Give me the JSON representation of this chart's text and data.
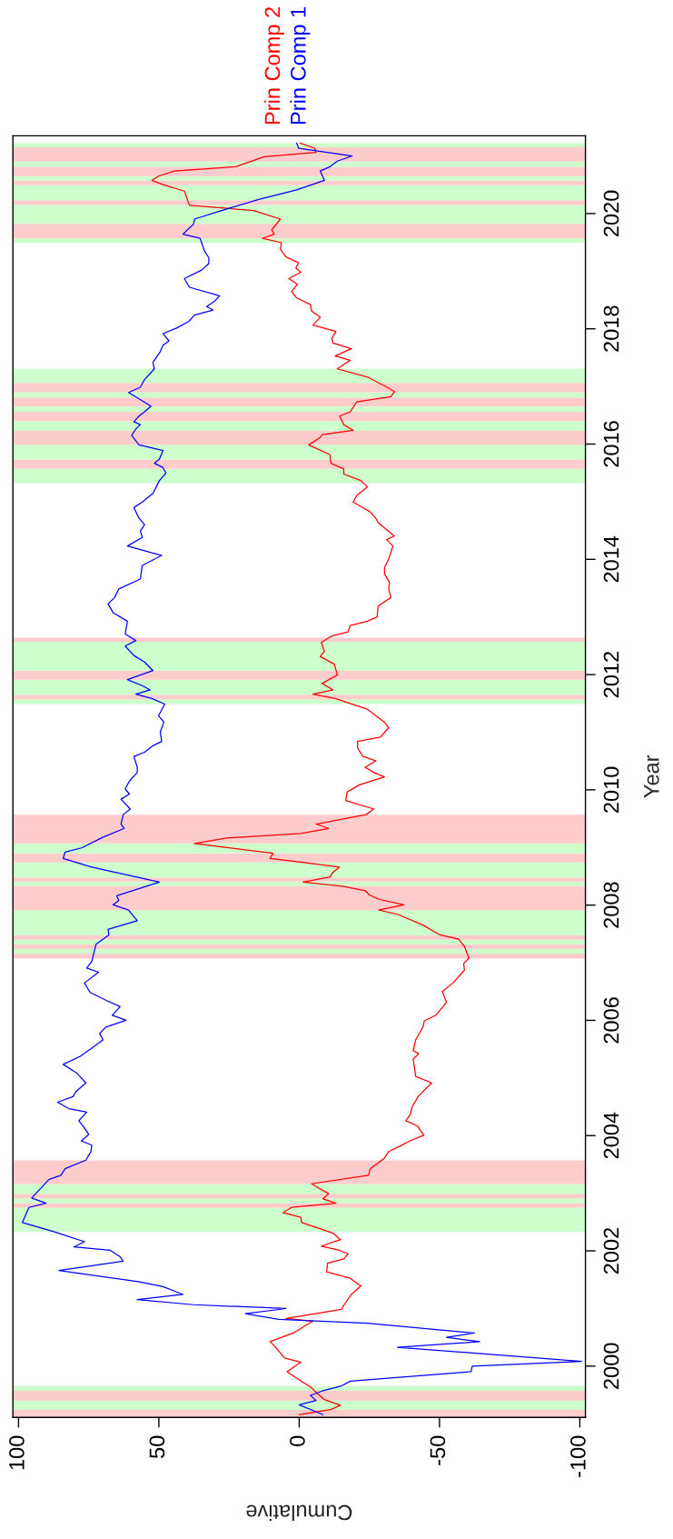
{
  "chart_data": {
    "type": "line",
    "xlabel": "Cumulative",
    "ylabel": "Year",
    "xlim": [
      102,
      -102
    ],
    "ylim": [
      1999.11,
      2021.35
    ],
    "xticks": [
      100,
      50,
      0,
      -50,
      -100
    ],
    "yticks": [
      2000,
      2002,
      2004,
      2006,
      2008,
      2010,
      2012,
      2014,
      2016,
      2018,
      2020
    ],
    "legend": "top",
    "line_style": "solid",
    "series": [
      {
        "name": "Prin Comp 2",
        "color": "#ff0000",
        "values": [
          1999.158,
          1999.247,
          1999.322,
          1999.419,
          1999.515,
          1999.642,
          1999.717,
          1999.903,
          2000.067,
          2000.141,
          2000.335,
          2000.425,
          2000.574,
          2000.782,
          2000.827,
          2000.984,
          2001.058,
          2001.244,
          2001.393,
          2001.468,
          2001.524,
          2001.636,
          2001.785,
          2001.86,
          2001.949,
          2002.009,
          2002.083,
          2002.195,
          2002.307,
          2002.493,
          2002.582,
          2002.664,
          2002.754,
          2002.828,
          2002.903,
          2002.992,
          2003.164,
          2003.313,
          2003.425,
          2003.611,
          2003.723,
          2003.812,
          2003.909,
          2004.006,
          2004.17,
          2004.259,
          2004.356,
          2004.505,
          2004.692,
          2004.915,
          2005.027,
          2005.176,
          2005.325,
          2005.422,
          2005.474,
          2005.66,
          2005.884,
          2005.992,
          2006.089,
          2006.313,
          2006.499,
          2006.648,
          2006.872,
          2006.983,
          2007.08,
          2007.282,
          2007.408,
          2007.483,
          2007.654,
          2007.841,
          2007.915,
          2008.005,
          2008.101,
          2008.176,
          2008.25,
          2008.325,
          2008.4,
          2008.489,
          2008.571,
          2008.66,
          2008.735,
          2008.809,
          2008.899,
          2009.07,
          2009.167,
          2009.242,
          2009.331,
          2009.406,
          2009.57,
          2009.667,
          2009.816,
          2009.965,
          2010.091,
          2010.225,
          2010.3,
          2010.393,
          2010.504,
          2010.579,
          2010.728,
          2010.84,
          2010.914,
          2011.078,
          2011.175,
          2011.399,
          2011.585,
          2011.659,
          2011.734,
          2011.846,
          2011.995,
          2012.181,
          2012.315,
          2012.405,
          2012.554,
          2012.665,
          2012.74,
          2012.852,
          2012.926,
          2013.001,
          2013.187,
          2013.336,
          2013.485,
          2013.597,
          2013.746,
          2013.858,
          2014.007,
          2014.231,
          2014.342,
          2014.402,
          2014.529,
          2014.64,
          2014.715,
          2014.823,
          2014.883,
          2014.995,
          2015.107,
          2015.256,
          2015.367,
          2015.479,
          2015.569,
          2015.666,
          2015.815,
          2015.986,
          2016.113,
          2016.165,
          2016.239,
          2016.337,
          2016.485,
          2016.56,
          2016.731,
          2016.821,
          2016.91,
          2016.97,
          2017.156,
          2017.305,
          2017.454,
          2017.529,
          2017.655,
          2017.752,
          2017.827,
          2017.954,
          2018.065,
          2018.199,
          2018.311,
          2018.423,
          2018.535,
          2018.647,
          2018.773,
          2018.87,
          2018.982,
          2019.056,
          2019.144,
          2019.248,
          2019.383,
          2019.494,
          2019.569,
          2019.643,
          2019.718,
          2019.904,
          2020.053,
          2020.143,
          2020.389,
          2020.501,
          2020.575,
          2020.649,
          2020.739,
          2020.813,
          2020.985,
          2021.06,
          2021.134,
          2021.223
        ],
        "x": [
          0,
          -11.3,
          -14.7,
          -9.0,
          -6.7,
          -4.0,
          -1.4,
          4.3,
          -0.6,
          5.2,
          8.5,
          10.4,
          2.1,
          -4.9,
          4.7,
          -15.1,
          -15.9,
          -18.6,
          -22.0,
          -19.7,
          -18.2,
          -9.8,
          -10.1,
          -15.9,
          -17.4,
          -14.4,
          -7.9,
          -14.7,
          -12.1,
          -0.9,
          -0.6,
          5.8,
          2.7,
          -13.1,
          -8.5,
          -10.5,
          -4.4,
          -24.7,
          -25.3,
          -30.4,
          -31.9,
          -35.7,
          -39.5,
          -44.4,
          -42.1,
          -38.0,
          -39.5,
          -40.3,
          -42.6,
          -47.2,
          -41.5,
          -41.1,
          -40.6,
          -42.6,
          -40.6,
          -41.5,
          -44.1,
          -44.6,
          -48.7,
          -52.5,
          -51.0,
          -54.8,
          -58.9,
          -58.6,
          -60.5,
          -58.9,
          -56.8,
          -50.2,
          -44.1,
          -35.0,
          -28.4,
          -37.3,
          -28.4,
          -25.0,
          -23.5,
          -15.9,
          -1.4,
          -11.0,
          -12.1,
          -14.4,
          -2.4,
          10.4,
          9.3,
          37.3,
          25.3,
          -0.6,
          -10.5,
          -6.0,
          -23.8,
          -26.6,
          -16.6,
          -17.1,
          -21.7,
          -30.4,
          -26.6,
          -23.5,
          -27.3,
          -22.7,
          -20.8,
          -20.8,
          -28.9,
          -31.9,
          -30.4,
          -24.3,
          -12.8,
          -4.9,
          -12.1,
          -8.2,
          -13.6,
          -12.5,
          -7.5,
          -9.0,
          -7.9,
          -11.3,
          -17.4,
          -18.2,
          -24.3,
          -27.8,
          -28.1,
          -32.7,
          -31.9,
          -32.2,
          -30.4,
          -30.4,
          -31.9,
          -33.4,
          -31.1,
          -33.9,
          -30.8,
          -28.1,
          -27.3,
          -25.3,
          -23.2,
          -19.2,
          -20.5,
          -24.3,
          -22.0,
          -15.9,
          -15.9,
          -11.3,
          -11.0,
          -3.4,
          -7.5,
          -8.2,
          -19.2,
          -15.9,
          -14.4,
          -18.2,
          -20.5,
          -32.7,
          -33.9,
          -31.9,
          -24.7,
          -13.6,
          -18.2,
          -12.8,
          -18.6,
          -12.1,
          -11.6,
          -13.1,
          -4.9,
          -7.5,
          -4.4,
          -4.0,
          0.9,
          2.7,
          0.6,
          3.7,
          -0.6,
          1.2,
          0.2,
          4.7,
          6.7,
          6.3,
          13.1,
          8.9,
          9.8,
          6.7,
          16.2,
          39.1,
          40.9,
          48.5,
          52.5,
          50.1,
          44.4,
          22.6,
          12.4,
          -6.0,
          -5.5,
          -0.3
        ]
      },
      {
        "name": "Prin Comp 1",
        "color": "#0000ff",
        "values": [
          1999.158,
          1999.329,
          1999.404,
          1999.493,
          1999.568,
          1999.657,
          1999.739,
          1999.903,
          2000.0,
          2000.082,
          2000.328,
          2000.425,
          2000.499,
          2000.574,
          2000.745,
          2000.812,
          2000.909,
          2000.999,
          2001.066,
          2001.155,
          2001.244,
          2001.379,
          2001.468,
          2001.658,
          2001.822,
          2001.897,
          2002.009,
          2002.068,
          2002.158,
          2002.329,
          2002.493,
          2002.754,
          2002.828,
          2002.918,
          2003.238,
          2003.313,
          2003.425,
          2003.574,
          2003.723,
          2003.834,
          2003.909,
          2004.021,
          2004.133,
          2004.259,
          2004.408,
          2004.468,
          2004.58,
          2004.677,
          2004.766,
          2004.915,
          2005.079,
          2005.236,
          2005.377,
          2005.549,
          2005.66,
          2005.772,
          2005.884,
          2006.0,
          2006.089,
          2006.238,
          2006.35,
          2006.484,
          2006.648,
          2006.835,
          2006.909,
          2007.021,
          2007.319,
          2007.483,
          2007.58,
          2007.729,
          2007.915,
          2008.005,
          2008.079,
          2008.161,
          2008.4,
          2008.489,
          2008.66,
          2008.809,
          2008.921,
          2008.996,
          2009.167,
          2009.331,
          2009.406,
          2009.57,
          2009.667,
          2009.838,
          2009.927,
          2010.017,
          2010.151,
          2010.3,
          2010.393,
          2010.579,
          2010.653,
          2010.765,
          2010.84,
          2011.004,
          2011.175,
          2011.287,
          2011.488,
          2011.585,
          2011.659,
          2011.734,
          2011.808,
          2011.913,
          2012.069,
          2012.218,
          2012.33,
          2012.494,
          2012.591,
          2012.703,
          2012.926,
          2013.075,
          2013.225,
          2013.336,
          2013.485,
          2013.657,
          2013.895,
          2014.067,
          2014.231,
          2014.38,
          2014.491,
          2014.603,
          2014.715,
          2014.898,
          2014.995,
          2015.144,
          2015.367,
          2015.494,
          2015.591,
          2015.666,
          2015.74,
          2015.889,
          2015.986,
          2016.15,
          2016.262,
          2016.337,
          2016.388,
          2016.485,
          2016.56,
          2016.657,
          2016.895,
          2016.985,
          2017.119,
          2017.305,
          2017.417,
          2017.603,
          2017.715,
          2017.79,
          2017.916,
          2018.013,
          2018.125,
          2018.237,
          2018.326,
          2018.386,
          2018.475,
          2018.572,
          2018.721,
          2018.87,
          2019.019,
          2019.131,
          2019.233,
          2019.345,
          2019.569,
          2019.643,
          2019.718,
          2019.815,
          2019.904,
          2020.068,
          2020.24,
          2020.411,
          2020.575,
          2020.739,
          2020.813,
          2020.91,
          2021.0,
          2021.134,
          2021.223
        ],
        "x": [
          -8.5,
          0,
          -6.0,
          -4.0,
          -8.2,
          -15.1,
          -18.2,
          -61.2,
          -61.7,
          -100.6,
          -35.0,
          -64.3,
          -52.5,
          -62.4,
          -24.3,
          7.3,
          19.2,
          4.7,
          37.6,
          57.7,
          41.4,
          48.5,
          57.4,
          85.6,
          62.7,
          63.8,
          67.3,
          80.3,
          76.5,
          87.2,
          98.6,
          96.3,
          90.2,
          95.3,
          89.2,
          84.9,
          83.4,
          76.0,
          74.2,
          73.9,
          77.6,
          75.0,
          76.5,
          78.5,
          75.7,
          82.1,
          86.1,
          80.6,
          79.5,
          76.0,
          79.1,
          84.1,
          78.0,
          73.0,
          69.9,
          71.1,
          68.9,
          61.7,
          66.6,
          63.8,
          68.9,
          74.5,
          76.5,
          71.5,
          75.7,
          73.9,
          72.4,
          67.8,
          68.1,
          57.7,
          60.8,
          66.3,
          64.3,
          65.0,
          49.8,
          58.2,
          73.9,
          84.1,
          83.4,
          77.3,
          70.4,
          62.3,
          63.5,
          62.7,
          60.2,
          63.5,
          60.5,
          62.0,
          60.5,
          57.7,
          57.7,
          58.9,
          55.1,
          52.1,
          49.0,
          49.5,
          48.2,
          50.1,
          47.9,
          52.5,
          58.2,
          53.1,
          55.9,
          61.2,
          52.1,
          55.1,
          58.9,
          62.0,
          58.2,
          62.0,
          61.2,
          66.3,
          68.1,
          65.8,
          64.3,
          56.6,
          55.9,
          49.0,
          61.2,
          55.9,
          56.6,
          55.1,
          57.1,
          58.9,
          55.9,
          52.1,
          49.8,
          47.5,
          48.5,
          51.6,
          49.8,
          48.5,
          57.1,
          59.7,
          58.2,
          56.6,
          58.9,
          57.1,
          55.1,
          52.8,
          60.8,
          56.6,
          55.1,
          51.6,
          52.1,
          49.5,
          48.5,
          46.4,
          48.5,
          43.7,
          39.4,
          37.3,
          30.7,
          33.0,
          30.2,
          28.4,
          39.1,
          40.9,
          34.8,
          32.2,
          32.2,
          33.7,
          35.3,
          41.4,
          39.8,
          37.6,
          37.3,
          26.6,
          14.7,
          0.9,
          -9.0,
          -7.5,
          -11.0,
          -13.6,
          -18.9,
          0.2,
          0.9
        ]
      }
    ],
    "bands": [
      {
        "axis": "y",
        "from": 1999.11,
        "to": 1999.24,
        "color": "#ffcccc"
      },
      {
        "axis": "y",
        "from": 1999.24,
        "to": 1999.4,
        "color": "#ccffcc"
      },
      {
        "axis": "y",
        "from": 1999.4,
        "to": 1999.57,
        "color": "#ffcccc"
      },
      {
        "axis": "y",
        "from": 1999.57,
        "to": 1999.66,
        "color": "#ccffcc"
      },
      {
        "axis": "y",
        "from": 2002.33,
        "to": 2002.75,
        "color": "#ccffcc"
      },
      {
        "axis": "y",
        "from": 2002.75,
        "to": 2002.83,
        "color": "#ffcccc"
      },
      {
        "axis": "y",
        "from": 2002.83,
        "to": 2002.91,
        "color": "#ccffcc"
      },
      {
        "axis": "y",
        "from": 2002.91,
        "to": 2002.99,
        "color": "#ffcccc"
      },
      {
        "axis": "y",
        "from": 2002.99,
        "to": 2003.16,
        "color": "#ccffcc"
      },
      {
        "axis": "y",
        "from": 2003.16,
        "to": 2003.57,
        "color": "#ffcccc"
      },
      {
        "axis": "y",
        "from": 2007.07,
        "to": 2007.16,
        "color": "#ffcccc"
      },
      {
        "axis": "y",
        "from": 2007.16,
        "to": 2007.24,
        "color": "#ccffcc"
      },
      {
        "axis": "y",
        "from": 2007.24,
        "to": 2007.32,
        "color": "#ffcccc"
      },
      {
        "axis": "y",
        "from": 2007.32,
        "to": 2007.4,
        "color": "#ccffcc"
      },
      {
        "axis": "y",
        "from": 2007.4,
        "to": 2007.48,
        "color": "#ffcccc"
      },
      {
        "axis": "y",
        "from": 2007.48,
        "to": 2007.91,
        "color": "#ccffcc"
      },
      {
        "axis": "y",
        "from": 2007.91,
        "to": 2008.33,
        "color": "#ffcccc"
      },
      {
        "axis": "y",
        "from": 2008.33,
        "to": 2008.41,
        "color": "#ccffcc"
      },
      {
        "axis": "y",
        "from": 2008.41,
        "to": 2008.48,
        "color": "#ffcccc"
      },
      {
        "axis": "y",
        "from": 2008.48,
        "to": 2008.74,
        "color": "#ccffcc"
      },
      {
        "axis": "y",
        "from": 2008.74,
        "to": 2008.9,
        "color": "#ffcccc"
      },
      {
        "axis": "y",
        "from": 2008.9,
        "to": 2009.07,
        "color": "#ccffcc"
      },
      {
        "axis": "y",
        "from": 2009.07,
        "to": 2009.57,
        "color": "#ffcccc"
      },
      {
        "axis": "y",
        "from": 2011.49,
        "to": 2011.57,
        "color": "#ccffcc"
      },
      {
        "axis": "y",
        "from": 2011.57,
        "to": 2011.65,
        "color": "#ffcccc"
      },
      {
        "axis": "y",
        "from": 2011.65,
        "to": 2011.91,
        "color": "#ccffcc"
      },
      {
        "axis": "y",
        "from": 2011.91,
        "to": 2012.07,
        "color": "#ffcccc"
      },
      {
        "axis": "y",
        "from": 2012.07,
        "to": 2012.57,
        "color": "#ccffcc"
      },
      {
        "axis": "y",
        "from": 2012.57,
        "to": 2012.64,
        "color": "#ffcccc"
      },
      {
        "axis": "y",
        "from": 2015.32,
        "to": 2015.57,
        "color": "#ccffcc"
      },
      {
        "axis": "y",
        "from": 2015.57,
        "to": 2015.73,
        "color": "#ffcccc"
      },
      {
        "axis": "y",
        "from": 2015.73,
        "to": 2015.99,
        "color": "#ccffcc"
      },
      {
        "axis": "y",
        "from": 2015.99,
        "to": 2016.23,
        "color": "#ffcccc"
      },
      {
        "axis": "y",
        "from": 2016.23,
        "to": 2016.4,
        "color": "#ccffcc"
      },
      {
        "axis": "y",
        "from": 2016.4,
        "to": 2016.56,
        "color": "#ffcccc"
      },
      {
        "axis": "y",
        "from": 2016.56,
        "to": 2016.65,
        "color": "#ccffcc"
      },
      {
        "axis": "y",
        "from": 2016.65,
        "to": 2016.81,
        "color": "#ffcccc"
      },
      {
        "axis": "y",
        "from": 2016.81,
        "to": 2016.9,
        "color": "#ccffcc"
      },
      {
        "axis": "y",
        "from": 2016.9,
        "to": 2017.06,
        "color": "#ffcccc"
      },
      {
        "axis": "y",
        "from": 2017.06,
        "to": 2017.31,
        "color": "#ccffcc"
      },
      {
        "axis": "y",
        "from": 2019.49,
        "to": 2019.57,
        "color": "#ccffcc"
      },
      {
        "axis": "y",
        "from": 2019.57,
        "to": 2019.82,
        "color": "#ffcccc"
      },
      {
        "axis": "y",
        "from": 2019.82,
        "to": 2020.15,
        "color": "#ccffcc"
      },
      {
        "axis": "y",
        "from": 2020.15,
        "to": 2020.23,
        "color": "#ffcccc"
      },
      {
        "axis": "y",
        "from": 2020.23,
        "to": 2020.49,
        "color": "#ccffcc"
      },
      {
        "axis": "y",
        "from": 2020.49,
        "to": 2020.57,
        "color": "#ffcccc"
      },
      {
        "axis": "y",
        "from": 2020.57,
        "to": 2020.65,
        "color": "#ccffcc"
      },
      {
        "axis": "y",
        "from": 2020.65,
        "to": 2020.81,
        "color": "#ffcccc"
      },
      {
        "axis": "y",
        "from": 2020.81,
        "to": 2020.9,
        "color": "#ccffcc"
      },
      {
        "axis": "y",
        "from": 2020.9,
        "to": 2021.15,
        "color": "#ffcccc"
      },
      {
        "axis": "y",
        "from": 2021.15,
        "to": 2021.22,
        "color": "#ccffcc"
      }
    ]
  }
}
